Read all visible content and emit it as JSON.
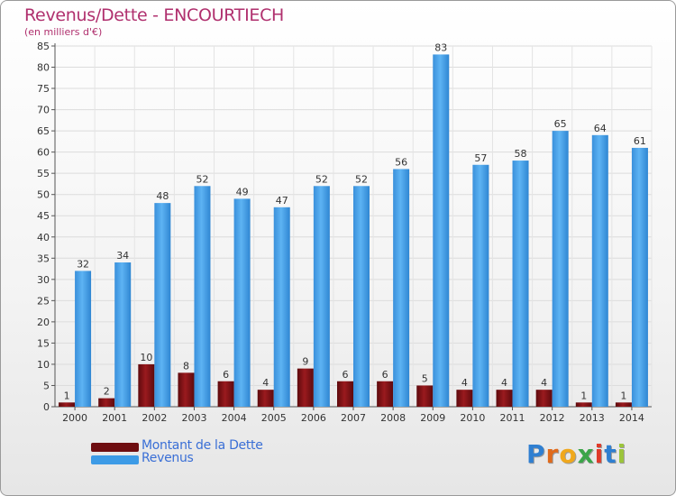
{
  "chart_data": {
    "type": "bar",
    "title": "Revenus/Dette - ENCOURTIECH",
    "subtitle": "(en milliers d'€)",
    "categories": [
      "2000",
      "2001",
      "2002",
      "2003",
      "2004",
      "2005",
      "2006",
      "2007",
      "2008",
      "2009",
      "2010",
      "2011",
      "2012",
      "2013",
      "2014"
    ],
    "series": [
      {
        "name": "Montant de la Dette",
        "color": "#7b0f12",
        "values": [
          1,
          2,
          10,
          8,
          6,
          4,
          9,
          6,
          6,
          5,
          4,
          4,
          4,
          1,
          1
        ]
      },
      {
        "name": "Revenus",
        "color": "#3d9be6",
        "values": [
          32,
          34,
          48,
          52,
          49,
          47,
          52,
          52,
          56,
          83,
          57,
          58,
          65,
          64,
          61
        ]
      }
    ],
    "ylim": [
      0,
      85
    ],
    "yticks": [
      0,
      5,
      10,
      15,
      20,
      25,
      30,
      35,
      40,
      45,
      50,
      55,
      60,
      65,
      70,
      75,
      80,
      85
    ],
    "grid": true,
    "legend_position": "bottom-left"
  },
  "brand": {
    "letters": [
      "P",
      "r",
      "o",
      "x",
      "i",
      "t",
      "i"
    ],
    "colors": [
      "#2f7fd1",
      "#e06a1b",
      "#f0a81c",
      "#3aa548",
      "#e03a2a",
      "#2f7fd1",
      "#9cc53a"
    ]
  }
}
